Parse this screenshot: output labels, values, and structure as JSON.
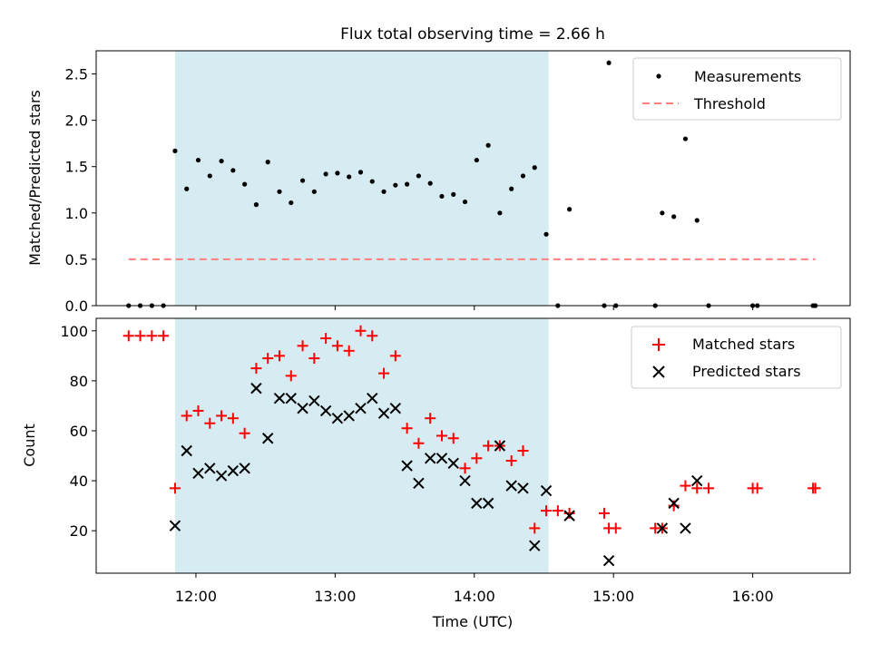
{
  "chart_data": [
    {
      "type": "scatter",
      "title": "Flux total observing time = 2.66 h",
      "xlabel": "",
      "ylabel": "Matched/Predicted stars",
      "xlim": [
        "11:17",
        "16:42"
      ],
      "ylim": [
        0,
        2.75
      ],
      "yticks": [
        0.0,
        0.5,
        1.0,
        1.5,
        2.0,
        2.5
      ],
      "ytick_labels": [
        "0.0",
        "0.5",
        "1.0",
        "1.5",
        "2.0",
        "2.5"
      ],
      "shaded_span": [
        "11:51",
        "14:32"
      ],
      "legend": [
        "Measurements",
        "Threshold"
      ],
      "legend_position": "upper right",
      "threshold": {
        "name": "Threshold",
        "y": 0.5,
        "x": [
          "11:31",
          "16:27"
        ],
        "color": "#ff7f7f"
      },
      "series": [
        {
          "name": "Measurements",
          "color": "#000000",
          "points": [
            [
              "11:31",
              0.0
            ],
            [
              "11:36",
              0.0
            ],
            [
              "11:41",
              0.0
            ],
            [
              "11:46",
              0.0
            ],
            [
              "11:51",
              1.67
            ],
            [
              "11:56",
              1.26
            ],
            [
              "12:01",
              1.57
            ],
            [
              "12:06",
              1.4
            ],
            [
              "12:11",
              1.56
            ],
            [
              "12:16",
              1.46
            ],
            [
              "12:21",
              1.31
            ],
            [
              "12:26",
              1.09
            ],
            [
              "12:31",
              1.55
            ],
            [
              "12:36",
              1.23
            ],
            [
              "12:41",
              1.11
            ],
            [
              "12:46",
              1.35
            ],
            [
              "12:51",
              1.23
            ],
            [
              "12:56",
              1.42
            ],
            [
              "13:01",
              1.43
            ],
            [
              "13:06",
              1.39
            ],
            [
              "13:11",
              1.44
            ],
            [
              "13:16",
              1.34
            ],
            [
              "13:21",
              1.23
            ],
            [
              "13:26",
              1.3
            ],
            [
              "13:31",
              1.31
            ],
            [
              "13:36",
              1.4
            ],
            [
              "13:41",
              1.32
            ],
            [
              "13:46",
              1.18
            ],
            [
              "13:51",
              1.2
            ],
            [
              "13:56",
              1.12
            ],
            [
              "14:01",
              1.57
            ],
            [
              "14:06",
              1.73
            ],
            [
              "14:11",
              1.0
            ],
            [
              "14:16",
              1.26
            ],
            [
              "14:21",
              1.4
            ],
            [
              "14:26",
              1.49
            ],
            [
              "14:31",
              0.77
            ],
            [
              "14:36",
              0.0
            ],
            [
              "14:41",
              1.04
            ],
            [
              "14:56",
              0.0
            ],
            [
              "14:58",
              2.62
            ],
            [
              "15:01",
              0.0
            ],
            [
              "15:18",
              0.0
            ],
            [
              "15:21",
              1.0
            ],
            [
              "15:26",
              0.96
            ],
            [
              "15:31",
              1.8
            ],
            [
              "15:36",
              0.92
            ],
            [
              "15:41",
              0.0
            ],
            [
              "16:00",
              0.0
            ],
            [
              "16:02",
              0.0
            ],
            [
              "16:26",
              0.0
            ],
            [
              "16:27",
              0.0
            ]
          ]
        }
      ]
    },
    {
      "type": "scatter",
      "title": "",
      "xlabel": "Time (UTC)",
      "ylabel": "Count",
      "xlim": [
        "11:17",
        "16:42"
      ],
      "ylim": [
        3,
        105
      ],
      "yticks": [
        20,
        40,
        60,
        80,
        100
      ],
      "ytick_labels": [
        "20",
        "40",
        "60",
        "80",
        "100"
      ],
      "xticks": [
        "12:00",
        "13:00",
        "14:00",
        "15:00",
        "16:00"
      ],
      "xtick_labels": [
        "12:00",
        "13:00",
        "14:00",
        "15:00",
        "16:00"
      ],
      "shaded_span": [
        "11:51",
        "14:32"
      ],
      "legend": [
        "Matched stars",
        "Predicted stars"
      ],
      "legend_position": "upper right",
      "series": [
        {
          "name": "Matched stars",
          "marker": "plus",
          "color": "#ff0000",
          "points": [
            [
              "11:31",
              98
            ],
            [
              "11:36",
              98
            ],
            [
              "11:41",
              98
            ],
            [
              "11:46",
              98
            ],
            [
              "11:51",
              37
            ],
            [
              "11:56",
              66
            ],
            [
              "12:01",
              68
            ],
            [
              "12:06",
              63
            ],
            [
              "12:11",
              66
            ],
            [
              "12:16",
              65
            ],
            [
              "12:21",
              59
            ],
            [
              "12:26",
              85
            ],
            [
              "12:31",
              89
            ],
            [
              "12:36",
              90
            ],
            [
              "12:41",
              82
            ],
            [
              "12:46",
              94
            ],
            [
              "12:51",
              89
            ],
            [
              "12:56",
              97
            ],
            [
              "13:01",
              94
            ],
            [
              "13:06",
              92
            ],
            [
              "13:11",
              100
            ],
            [
              "13:16",
              98
            ],
            [
              "13:21",
              83
            ],
            [
              "13:26",
              90
            ],
            [
              "13:31",
              61
            ],
            [
              "13:36",
              55
            ],
            [
              "13:41",
              65
            ],
            [
              "13:46",
              58
            ],
            [
              "13:51",
              57
            ],
            [
              "13:56",
              45
            ],
            [
              "14:01",
              49
            ],
            [
              "14:06",
              54
            ],
            [
              "14:11",
              54
            ],
            [
              "14:16",
              48
            ],
            [
              "14:21",
              52
            ],
            [
              "14:26",
              21
            ],
            [
              "14:31",
              28
            ],
            [
              "14:36",
              28
            ],
            [
              "14:41",
              27
            ],
            [
              "14:56",
              27
            ],
            [
              "14:58",
              21
            ],
            [
              "15:01",
              21
            ],
            [
              "15:18",
              21
            ],
            [
              "15:21",
              21
            ],
            [
              "15:26",
              30
            ],
            [
              "15:31",
              38
            ],
            [
              "15:36",
              37
            ],
            [
              "15:41",
              37
            ],
            [
              "16:00",
              37
            ],
            [
              "16:02",
              37
            ],
            [
              "16:26",
              37
            ],
            [
              "16:27",
              37
            ]
          ]
        },
        {
          "name": "Predicted stars",
          "marker": "x",
          "color": "#000000",
          "points": [
            [
              "11:51",
              22
            ],
            [
              "11:56",
              52
            ],
            [
              "12:01",
              43
            ],
            [
              "12:06",
              45
            ],
            [
              "12:11",
              42
            ],
            [
              "12:16",
              44
            ],
            [
              "12:21",
              45
            ],
            [
              "12:26",
              77
            ],
            [
              "12:31",
              57
            ],
            [
              "12:36",
              73
            ],
            [
              "12:41",
              73
            ],
            [
              "12:46",
              69
            ],
            [
              "12:51",
              72
            ],
            [
              "12:56",
              68
            ],
            [
              "13:01",
              65
            ],
            [
              "13:06",
              66
            ],
            [
              "13:11",
              69
            ],
            [
              "13:16",
              73
            ],
            [
              "13:21",
              67
            ],
            [
              "13:26",
              69
            ],
            [
              "13:31",
              46
            ],
            [
              "13:36",
              39
            ],
            [
              "13:41",
              49
            ],
            [
              "13:46",
              49
            ],
            [
              "13:51",
              47
            ],
            [
              "13:56",
              40
            ],
            [
              "14:01",
              31
            ],
            [
              "14:06",
              31
            ],
            [
              "14:11",
              54
            ],
            [
              "14:16",
              38
            ],
            [
              "14:21",
              37
            ],
            [
              "14:26",
              14
            ],
            [
              "14:31",
              36
            ],
            [
              "14:41",
              26
            ],
            [
              "14:58",
              8
            ],
            [
              "15:21",
              21
            ],
            [
              "15:26",
              31
            ],
            [
              "15:31",
              21
            ],
            [
              "15:36",
              40
            ]
          ]
        }
      ]
    }
  ]
}
